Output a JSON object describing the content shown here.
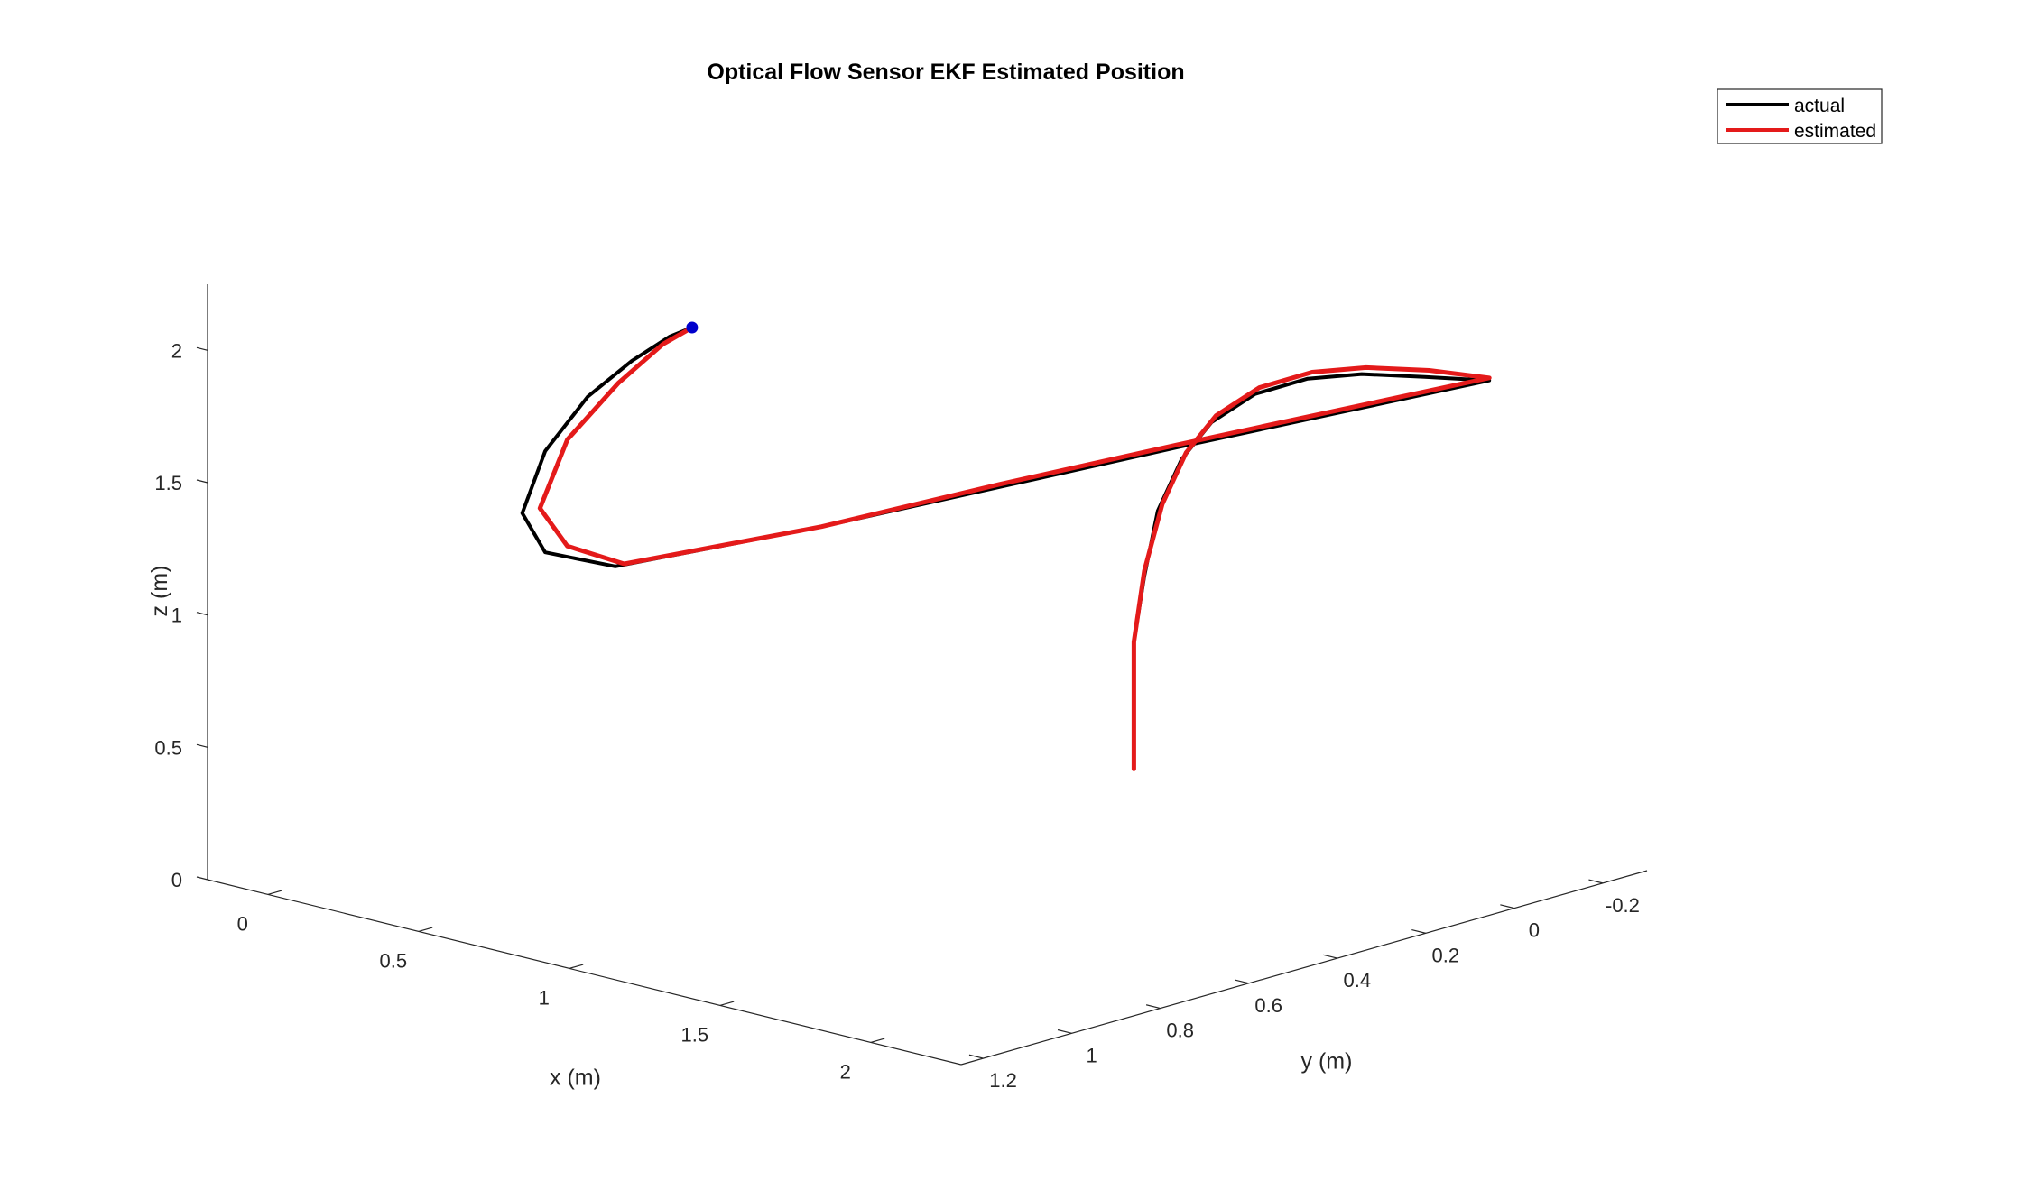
{
  "chart_data": {
    "type": "line",
    "projection": "3d",
    "title": "Optical Flow Sensor EKF Estimated Position",
    "xlabel": "x (m)",
    "ylabel": "y (m)",
    "zlabel": "z (m)",
    "xlim": [
      -0.2,
      2.3
    ],
    "ylim": [
      -0.3,
      1.25
    ],
    "zlim": [
      0,
      2.25
    ],
    "x_ticks": [
      "0",
      "0.5",
      "1",
      "1.5",
      "2"
    ],
    "y_ticks": [
      "-0.2",
      "0",
      "0.2",
      "0.4",
      "0.6",
      "0.8",
      "1",
      "1.2"
    ],
    "z_ticks": [
      "0",
      "0.5",
      "1",
      "1.5",
      "2"
    ],
    "grid": false,
    "legend_position": "top-right",
    "series": [
      {
        "name": "actual",
        "color": "#000000",
        "points": [
          [
            0.95,
            -0.06,
            0.13
          ],
          [
            0.95,
            -0.06,
            0.6
          ],
          [
            0.97,
            -0.07,
            0.85
          ],
          [
            1.0,
            -0.08,
            1.1
          ],
          [
            1.05,
            -0.1,
            1.3
          ],
          [
            1.12,
            -0.12,
            1.45
          ],
          [
            1.22,
            -0.15,
            1.57
          ],
          [
            1.35,
            -0.18,
            1.65
          ],
          [
            1.5,
            -0.2,
            1.7
          ],
          [
            1.68,
            -0.22,
            1.73
          ],
          [
            1.85,
            -0.25,
            1.75
          ],
          [
            1.7,
            0.0,
            1.7
          ],
          [
            1.55,
            0.25,
            1.65
          ],
          [
            1.4,
            0.55,
            1.6
          ],
          [
            1.25,
            0.85,
            1.55
          ],
          [
            1.05,
            1.18,
            1.5
          ],
          [
            0.92,
            1.25,
            1.55
          ],
          [
            0.8,
            1.22,
            1.65
          ],
          [
            0.7,
            1.1,
            1.8
          ],
          [
            0.65,
            0.97,
            1.93
          ],
          [
            0.62,
            0.85,
            2.0
          ],
          [
            0.6,
            0.75,
            2.04
          ],
          [
            0.6,
            0.7,
            2.05
          ]
        ]
      },
      {
        "name": "estimated",
        "color": "#e41a1a",
        "points": [
          [
            0.95,
            -0.06,
            0.12
          ],
          [
            0.95,
            -0.06,
            0.6
          ],
          [
            0.97,
            -0.07,
            0.87
          ],
          [
            1.0,
            -0.09,
            1.12
          ],
          [
            1.05,
            -0.11,
            1.32
          ],
          [
            1.12,
            -0.13,
            1.47
          ],
          [
            1.22,
            -0.16,
            1.59
          ],
          [
            1.35,
            -0.19,
            1.67
          ],
          [
            1.5,
            -0.21,
            1.72
          ],
          [
            1.68,
            -0.23,
            1.75
          ],
          [
            1.85,
            -0.25,
            1.76
          ],
          [
            1.7,
            0.0,
            1.71
          ],
          [
            1.55,
            0.25,
            1.66
          ],
          [
            1.4,
            0.55,
            1.61
          ],
          [
            1.25,
            0.85,
            1.55
          ],
          [
            1.05,
            1.16,
            1.5
          ],
          [
            0.92,
            1.2,
            1.55
          ],
          [
            0.8,
            1.18,
            1.65
          ],
          [
            0.7,
            1.05,
            1.82
          ],
          [
            0.65,
            0.9,
            1.95
          ],
          [
            0.62,
            0.78,
            2.03
          ],
          [
            0.6,
            0.7,
            2.05
          ]
        ]
      }
    ],
    "start_marker": {
      "color": "#0000cc",
      "point": [
        0.6,
        0.7,
        2.05
      ]
    }
  }
}
